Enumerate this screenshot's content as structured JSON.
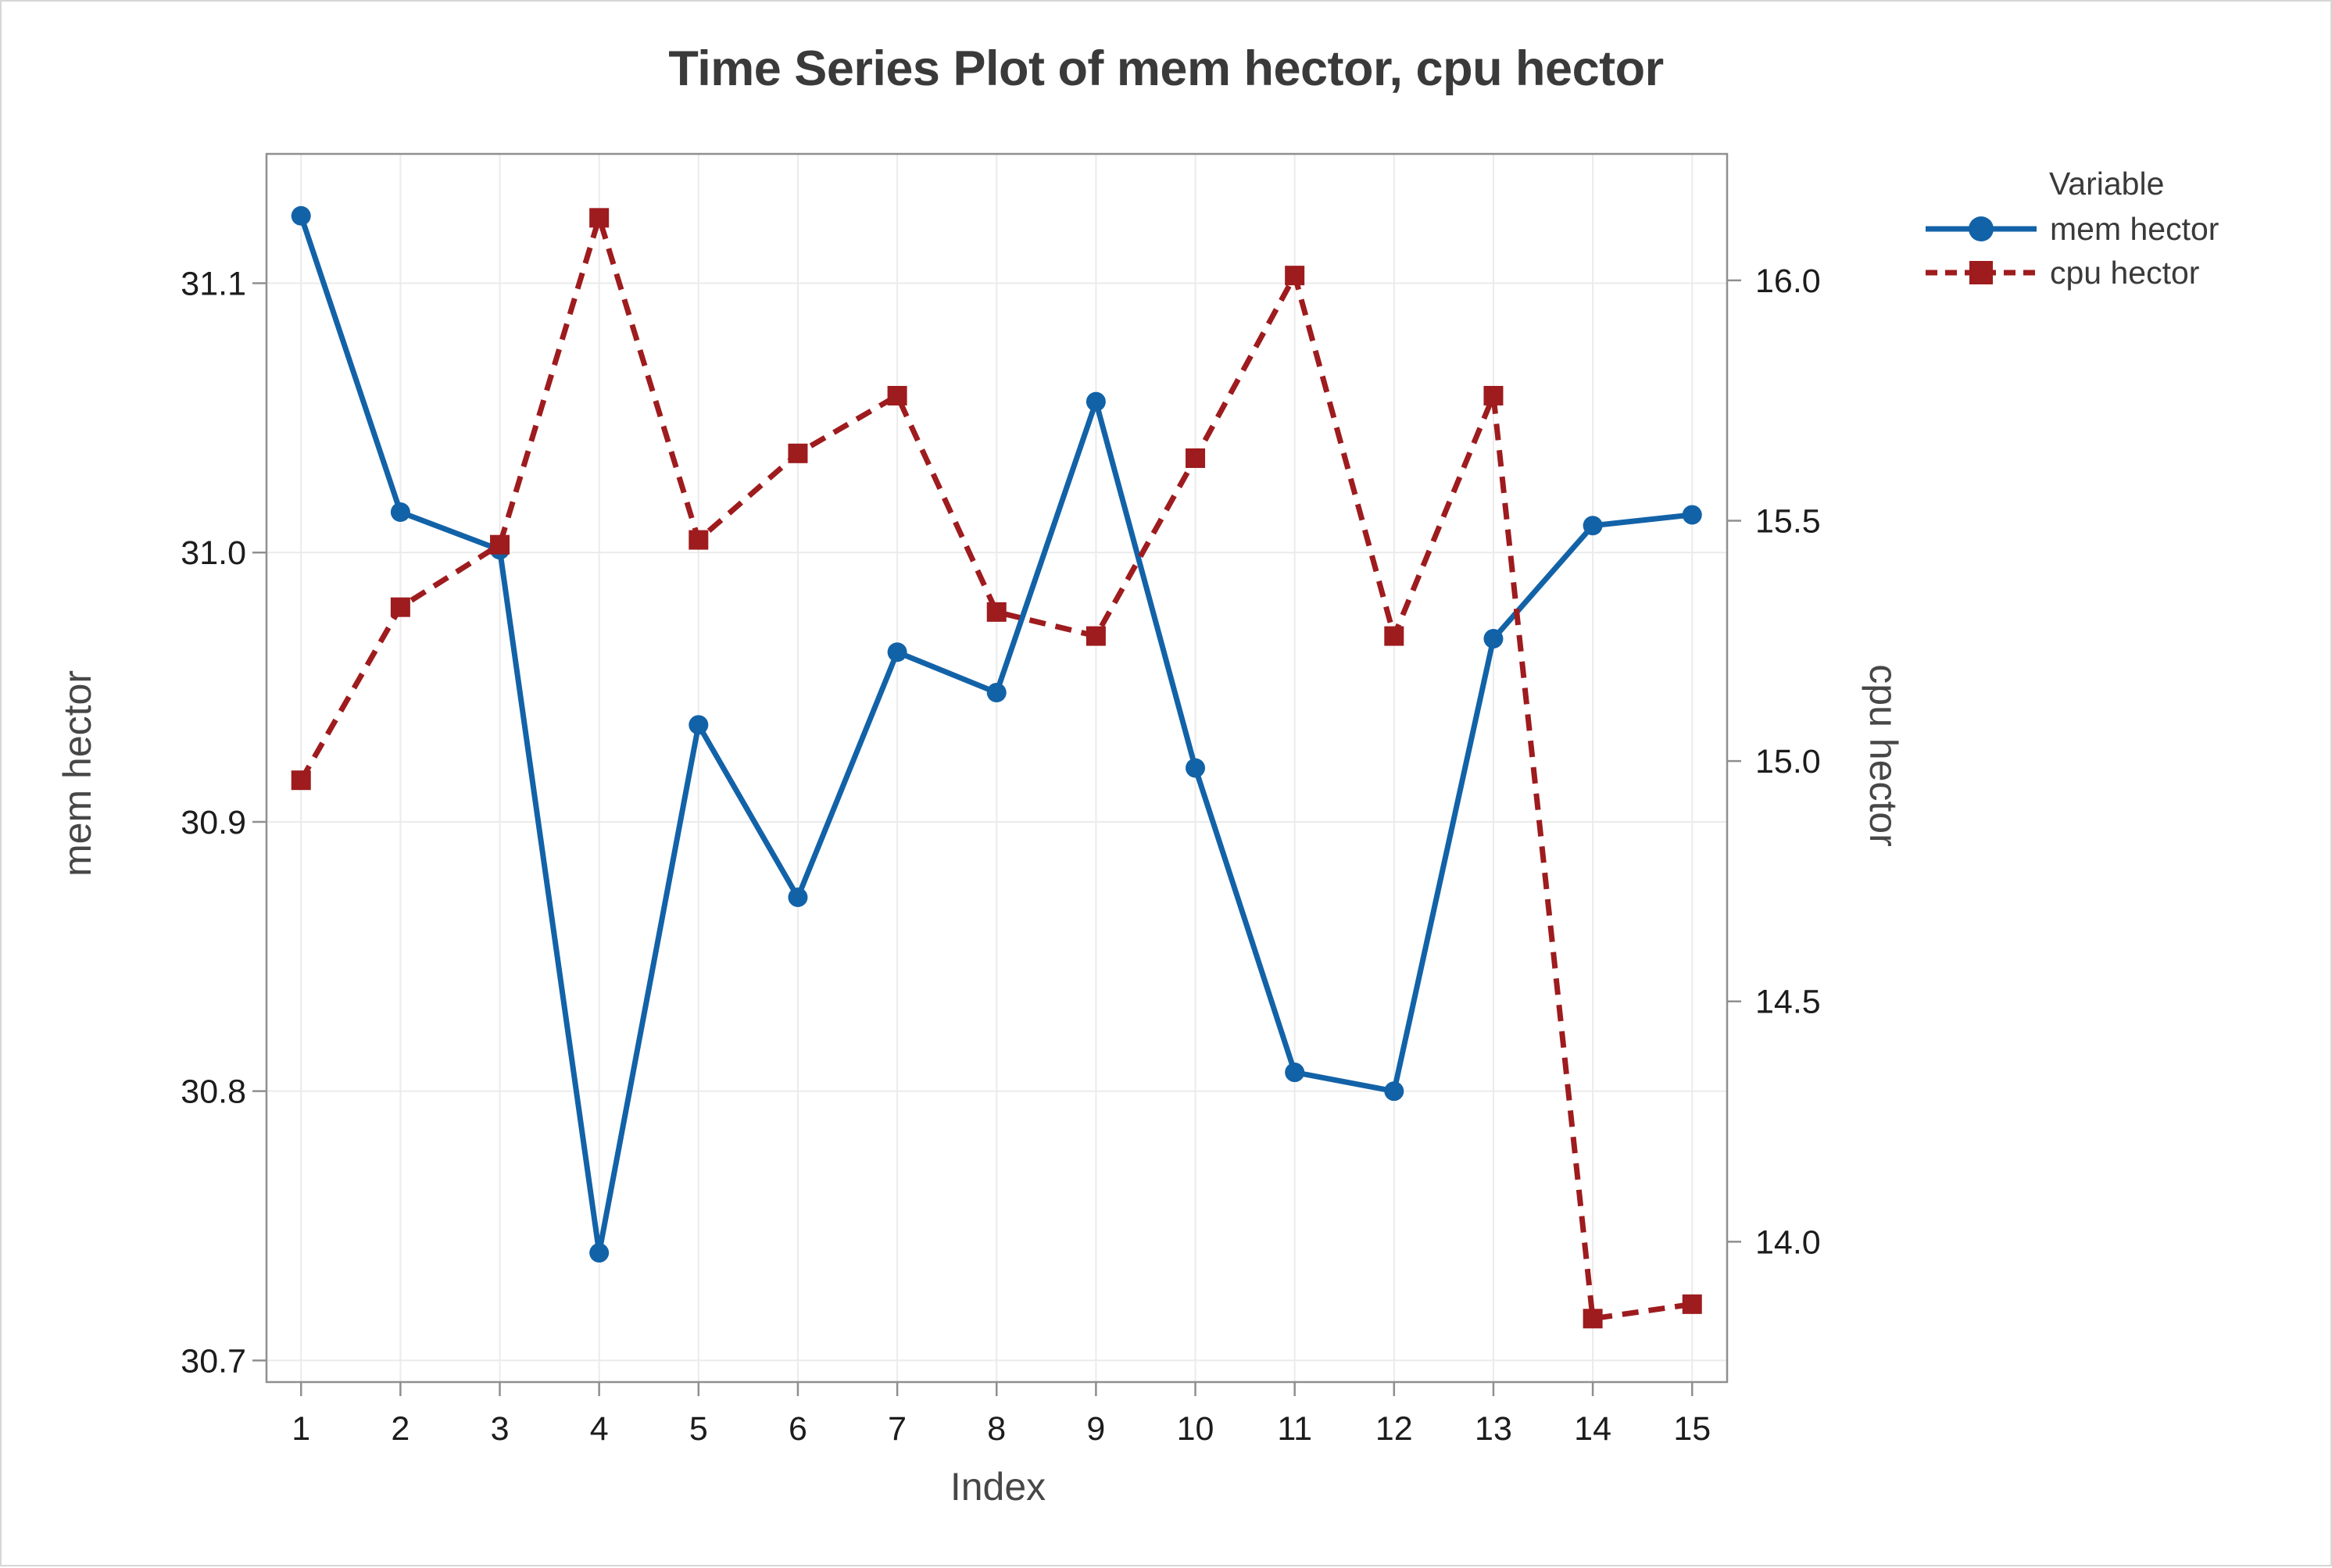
{
  "chart": {
    "title": "Time Series Plot of mem hector, cpu hector",
    "x_axis_label": "Index",
    "y_left_label": "mem hector",
    "y_right_label": "cpu hector"
  },
  "legend": {
    "title": "Variable",
    "entries": [
      {
        "label": "mem hector",
        "color": "#1262a8",
        "marker": "circle",
        "line": "solid"
      },
      {
        "label": "cpu hector",
        "color": "#9e1b1e",
        "marker": "square",
        "line": "dashed"
      }
    ]
  },
  "colors": {
    "grid": "#ebebeb",
    "axis": "#8f8f8f",
    "tick_text": "#1c1c1c",
    "title_text": "#3a3a3a",
    "mem_series": "#1262a8",
    "cpu_series": "#9e1b1e"
  },
  "chart_data": {
    "type": "line",
    "title": "Time Series Plot of mem hector, cpu hector",
    "xlabel": "Index",
    "x": [
      1,
      2,
      3,
      4,
      5,
      6,
      7,
      8,
      9,
      10,
      11,
      12,
      13,
      14,
      15
    ],
    "x_tick_labels": [
      "1",
      "2",
      "3",
      "4",
      "5",
      "6",
      "7",
      "8",
      "9",
      "10",
      "11",
      "12",
      "13",
      "14",
      "15"
    ],
    "series": [
      {
        "name": "mem hector",
        "axis": "left",
        "color": "#1262a8",
        "marker": "circle",
        "line_style": "solid",
        "values": [
          31.125,
          31.015,
          31.001,
          30.74,
          30.936,
          30.872,
          30.963,
          30.948,
          31.056,
          30.92,
          30.807,
          30.8,
          30.968,
          31.01,
          31.014
        ]
      },
      {
        "name": "cpu hector",
        "axis": "right",
        "color": "#9e1b1e",
        "marker": "square",
        "line_style": "dashed",
        "values": [
          14.96,
          15.32,
          15.45,
          16.13,
          15.46,
          15.64,
          15.76,
          15.31,
          15.26,
          15.63,
          16.01,
          15.26,
          15.76,
          13.84,
          13.87
        ]
      }
    ],
    "y_left": {
      "label": "mem hector",
      "ticks": [
        30.7,
        30.8,
        30.9,
        31.0,
        31.1
      ],
      "tick_labels": [
        "30.7",
        "30.8",
        "30.9",
        "31.0",
        "31.1"
      ],
      "range": [
        30.692,
        31.148
      ]
    },
    "y_right": {
      "label": "cpu hector",
      "ticks": [
        14.0,
        14.5,
        15.0,
        15.5,
        16.0
      ],
      "tick_labels": [
        "14.0",
        "14.5",
        "15.0",
        "15.5",
        "16.0"
      ],
      "range": [
        13.708,
        16.263
      ]
    },
    "x_range": [
      0.652,
      15.352
    ],
    "grid": true,
    "legend_position": "right"
  }
}
